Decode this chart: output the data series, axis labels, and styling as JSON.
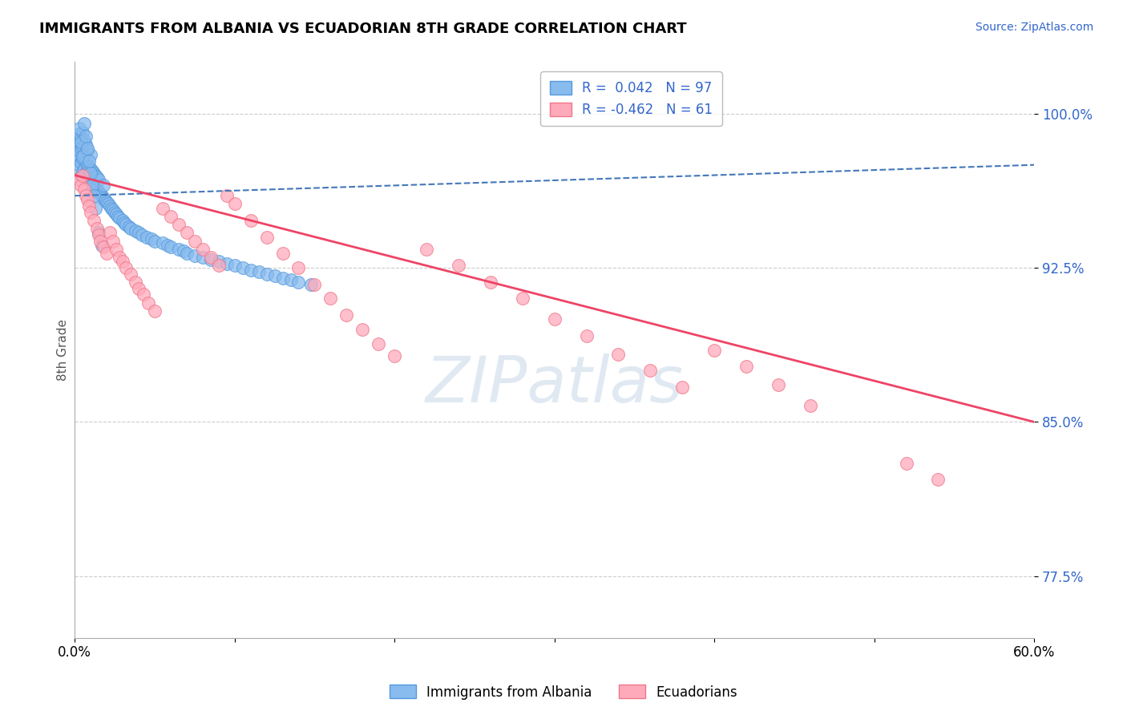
{
  "title": "IMMIGRANTS FROM ALBANIA VS ECUADORIAN 8TH GRADE CORRELATION CHART",
  "source_text": "Source: ZipAtlas.com",
  "ylabel": "8th Grade",
  "xlim": [
    0.0,
    0.6
  ],
  "ylim": [
    0.745,
    1.025
  ],
  "yticks": [
    0.775,
    0.85,
    0.925,
    1.0
  ],
  "ytick_labels": [
    "77.5%",
    "85.0%",
    "92.5%",
    "100.0%"
  ],
  "albania_R": 0.042,
  "albania_N": 97,
  "ecuador_R": -0.462,
  "ecuador_N": 61,
  "albania_dot_color": "#88BBEE",
  "albania_edge_color": "#5599DD",
  "ecuador_dot_color": "#FFAABB",
  "ecuador_edge_color": "#EE7788",
  "trend_albania_color": "#4477BB",
  "trend_ecuador_color": "#EE4466",
  "watermark_color": "#C8D8E8",
  "albania_scatter_x": [
    0.001,
    0.002,
    0.002,
    0.003,
    0.003,
    0.003,
    0.004,
    0.004,
    0.004,
    0.004,
    0.005,
    0.005,
    0.005,
    0.005,
    0.006,
    0.006,
    0.006,
    0.007,
    0.007,
    0.007,
    0.008,
    0.008,
    0.008,
    0.009,
    0.009,
    0.01,
    0.01,
    0.01,
    0.011,
    0.011,
    0.012,
    0.012,
    0.013,
    0.013,
    0.014,
    0.014,
    0.015,
    0.015,
    0.016,
    0.017,
    0.018,
    0.018,
    0.019,
    0.02,
    0.021,
    0.022,
    0.023,
    0.024,
    0.025,
    0.026,
    0.027,
    0.028,
    0.03,
    0.031,
    0.032,
    0.034,
    0.035,
    0.038,
    0.04,
    0.042,
    0.045,
    0.048,
    0.05,
    0.055,
    0.058,
    0.06,
    0.065,
    0.068,
    0.07,
    0.075,
    0.08,
    0.085,
    0.09,
    0.095,
    0.1,
    0.105,
    0.11,
    0.115,
    0.12,
    0.125,
    0.13,
    0.135,
    0.14,
    0.148,
    0.003,
    0.004,
    0.005,
    0.006,
    0.007,
    0.008,
    0.009,
    0.01,
    0.011,
    0.012,
    0.013,
    0.015,
    0.017
  ],
  "albania_scatter_y": [
    0.98,
    0.978,
    0.985,
    0.975,
    0.982,
    0.99,
    0.97,
    0.976,
    0.983,
    0.988,
    0.972,
    0.978,
    0.984,
    0.991,
    0.973,
    0.98,
    0.987,
    0.971,
    0.977,
    0.985,
    0.969,
    0.975,
    0.982,
    0.968,
    0.974,
    0.967,
    0.973,
    0.98,
    0.966,
    0.972,
    0.965,
    0.971,
    0.964,
    0.97,
    0.963,
    0.969,
    0.962,
    0.968,
    0.961,
    0.96,
    0.959,
    0.965,
    0.958,
    0.957,
    0.956,
    0.955,
    0.954,
    0.953,
    0.952,
    0.951,
    0.95,
    0.949,
    0.948,
    0.947,
    0.946,
    0.945,
    0.944,
    0.943,
    0.942,
    0.941,
    0.94,
    0.939,
    0.938,
    0.937,
    0.936,
    0.935,
    0.934,
    0.933,
    0.932,
    0.931,
    0.93,
    0.929,
    0.928,
    0.927,
    0.926,
    0.925,
    0.924,
    0.923,
    0.922,
    0.921,
    0.92,
    0.919,
    0.918,
    0.917,
    0.993,
    0.986,
    0.979,
    0.995,
    0.989,
    0.983,
    0.977,
    0.971,
    0.965,
    0.96,
    0.954,
    0.942,
    0.936
  ],
  "ecuador_scatter_x": [
    0.003,
    0.004,
    0.005,
    0.006,
    0.007,
    0.008,
    0.009,
    0.01,
    0.012,
    0.014,
    0.015,
    0.016,
    0.018,
    0.02,
    0.022,
    0.024,
    0.026,
    0.028,
    0.03,
    0.032,
    0.035,
    0.038,
    0.04,
    0.043,
    0.046,
    0.05,
    0.055,
    0.06,
    0.065,
    0.07,
    0.075,
    0.08,
    0.085,
    0.09,
    0.095,
    0.1,
    0.11,
    0.12,
    0.13,
    0.14,
    0.15,
    0.16,
    0.17,
    0.18,
    0.19,
    0.2,
    0.22,
    0.24,
    0.26,
    0.28,
    0.3,
    0.32,
    0.34,
    0.36,
    0.38,
    0.4,
    0.42,
    0.44,
    0.46,
    0.52,
    0.54
  ],
  "ecuador_scatter_y": [
    0.968,
    0.965,
    0.97,
    0.963,
    0.96,
    0.958,
    0.955,
    0.952,
    0.948,
    0.944,
    0.941,
    0.938,
    0.935,
    0.932,
    0.942,
    0.938,
    0.934,
    0.93,
    0.928,
    0.925,
    0.922,
    0.918,
    0.915,
    0.912,
    0.908,
    0.904,
    0.954,
    0.95,
    0.946,
    0.942,
    0.938,
    0.934,
    0.93,
    0.926,
    0.96,
    0.956,
    0.948,
    0.94,
    0.932,
    0.925,
    0.917,
    0.91,
    0.902,
    0.895,
    0.888,
    0.882,
    0.934,
    0.926,
    0.918,
    0.91,
    0.9,
    0.892,
    0.883,
    0.875,
    0.867,
    0.885,
    0.877,
    0.868,
    0.858,
    0.83,
    0.822
  ],
  "albania_trend_x": [
    0.0,
    0.6
  ],
  "albania_trend_y": [
    0.96,
    0.975
  ],
  "ecuador_trend_x": [
    0.0,
    0.6
  ],
  "ecuador_trend_y": [
    0.97,
    0.85
  ]
}
